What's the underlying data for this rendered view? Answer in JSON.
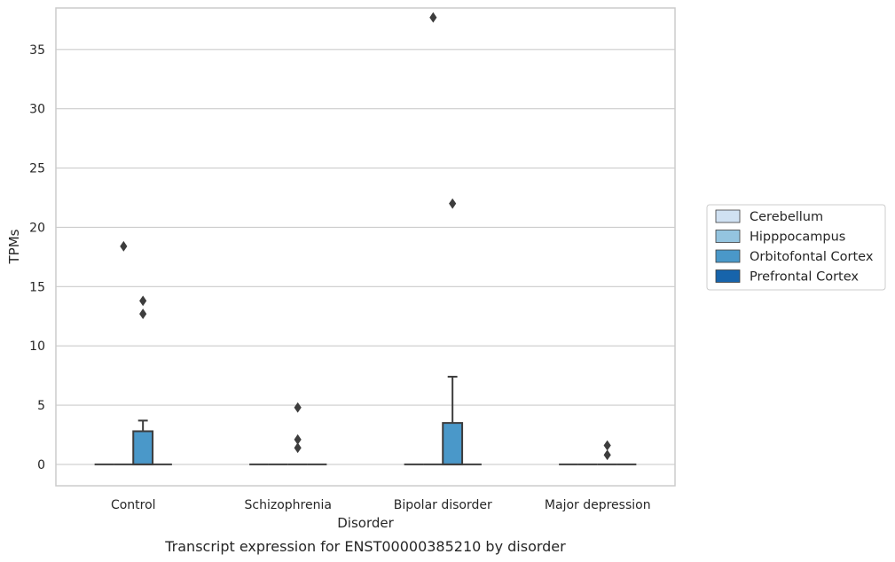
{
  "chart_data": {
    "type": "box",
    "title": "",
    "xlabel": "Disorder",
    "ylabel": "TPMs",
    "caption": "Transcript expression for ENST00000385210 by disorder",
    "ylim": [
      -1.8,
      38.5
    ],
    "yticks": [
      0,
      5,
      10,
      15,
      20,
      25,
      30,
      35
    ],
    "grid": true,
    "legend_position": "right",
    "categories": [
      "Control",
      "Schizophrenia",
      "Bipolar disorder",
      "Major depression"
    ],
    "series": [
      {
        "name": "Cerebellum",
        "color": "#d0e1f2",
        "boxes": [
          {
            "q1": 0,
            "median": 0,
            "q3": 0,
            "whisker_low": 0,
            "whisker_high": 0,
            "outliers": []
          },
          {
            "q1": 0,
            "median": 0,
            "q3": 0,
            "whisker_low": 0,
            "whisker_high": 0,
            "outliers": []
          },
          {
            "q1": 0,
            "median": 0,
            "q3": 0,
            "whisker_low": 0,
            "whisker_high": 0,
            "outliers": []
          },
          {
            "q1": 0,
            "median": 0,
            "q3": 0,
            "whisker_low": 0,
            "whisker_high": 0,
            "outliers": []
          }
        ]
      },
      {
        "name": "Hipppocampus",
        "color": "#94c4df",
        "boxes": [
          {
            "q1": 0,
            "median": 0,
            "q3": 0,
            "whisker_low": 0,
            "whisker_high": 0,
            "outliers": [
              18.4
            ]
          },
          {
            "q1": 0,
            "median": 0,
            "q3": 0,
            "whisker_low": 0,
            "whisker_high": 0,
            "outliers": []
          },
          {
            "q1": 0,
            "median": 0,
            "q3": 0,
            "whisker_low": 0,
            "whisker_high": 0,
            "outliers": [
              37.7
            ]
          },
          {
            "q1": 0,
            "median": 0,
            "q3": 0,
            "whisker_low": 0,
            "whisker_high": 0,
            "outliers": []
          }
        ]
      },
      {
        "name": "Orbitofontal Cortex",
        "color": "#4a98c9",
        "boxes": [
          {
            "q1": 0,
            "median": 0,
            "q3": 2.8,
            "whisker_low": 0,
            "whisker_high": 3.7,
            "outliers": [
              13.8,
              12.7
            ]
          },
          {
            "q1": 0,
            "median": 0,
            "q3": 0,
            "whisker_low": 0,
            "whisker_high": 0,
            "outliers": [
              4.8,
              2.1,
              1.4
            ]
          },
          {
            "q1": 0,
            "median": 0,
            "q3": 3.5,
            "whisker_low": 0,
            "whisker_high": 7.4,
            "outliers": [
              22.0
            ]
          },
          {
            "q1": 0,
            "median": 0,
            "q3": 0,
            "whisker_low": 0,
            "whisker_high": 0,
            "outliers": [
              1.6,
              0.8
            ]
          }
        ]
      },
      {
        "name": "Prefrontal Cortex",
        "color": "#1764ab",
        "boxes": [
          {
            "q1": 0,
            "median": 0,
            "q3": 0,
            "whisker_low": 0,
            "whisker_high": 0,
            "outliers": []
          },
          {
            "q1": 0,
            "median": 0,
            "q3": 0,
            "whisker_low": 0,
            "whisker_high": 0,
            "outliers": []
          },
          {
            "q1": 0,
            "median": 0,
            "q3": 0,
            "whisker_low": 0,
            "whisker_high": 0,
            "outliers": []
          },
          {
            "q1": 0,
            "median": 0,
            "q3": 0,
            "whisker_low": 0,
            "whisker_high": 0,
            "outliers": []
          }
        ]
      }
    ]
  }
}
